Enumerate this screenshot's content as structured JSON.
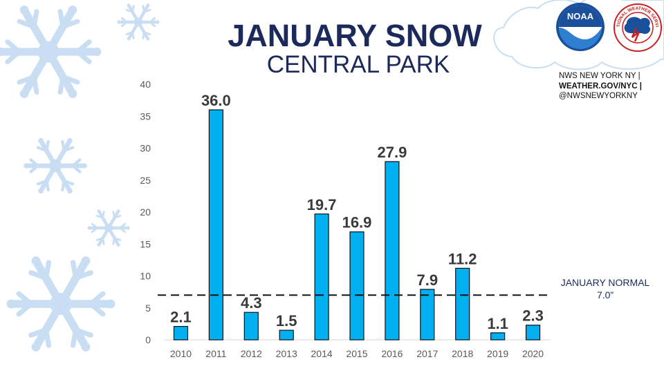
{
  "header": {
    "title": "JANUARY SNOW",
    "subtitle": "CENTRAL PARK"
  },
  "credits": {
    "line1": "NWS NEW YORK NY |",
    "line2": "WEATHER.GOV/NYC |",
    "line3": "@NWSNEWYORKNY"
  },
  "logos": {
    "noaa_text": "NOAA",
    "nws_text": "NATIONAL WEATHER SERVICE"
  },
  "colors": {
    "bar": "#00b0f0",
    "title": "#1b2a5a",
    "snowflake": "#c9ddf3"
  },
  "chart_data": {
    "type": "bar",
    "categories": [
      "2010",
      "2011",
      "2012",
      "2013",
      "2014",
      "2015",
      "2016",
      "2017",
      "2018",
      "2019",
      "2020"
    ],
    "values": [
      2.1,
      36.0,
      4.3,
      1.5,
      19.7,
      16.9,
      27.9,
      7.9,
      11.2,
      1.1,
      2.3
    ],
    "value_labels": [
      "2.1",
      "36.0",
      "4.3",
      "1.5",
      "19.7",
      "16.9",
      "27.9",
      "7.9",
      "11.2",
      "1.1",
      "2.3"
    ],
    "ylim": [
      0,
      40
    ],
    "yticks": [
      "0",
      "5",
      "10",
      "15",
      "20",
      "25",
      "30",
      "35",
      "40"
    ],
    "grid": false,
    "reference_line": {
      "value": 7.0,
      "label_line1": "JANUARY NORMAL",
      "label_line2": "7.0”"
    }
  }
}
